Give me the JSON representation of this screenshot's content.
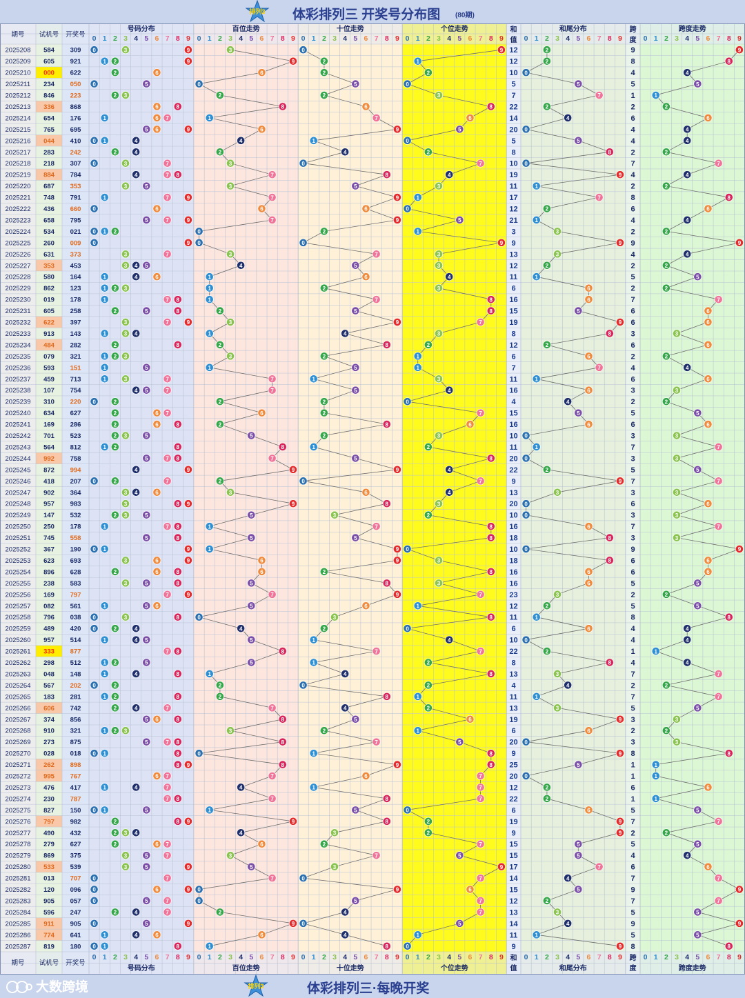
{
  "header": {
    "title": "体彩排列三 开奖号分布图",
    "periods_note": "(80期)",
    "logo_text": "排列3"
  },
  "footer": {
    "title": "体彩排列三·每晚开奖",
    "brand": "大数跨境",
    "logo_text": "排列3"
  },
  "columns": {
    "period": "期号",
    "trial": "试机号",
    "draw": "开奖号",
    "number_dist": "号码分布",
    "hundreds": "百位走势",
    "tens": "十位走势",
    "units": "个位走势",
    "sum_top": "和",
    "sum_bottom": "值",
    "sum_tail": "和尾分布",
    "span_top": "跨",
    "span_bottom": "度",
    "span_trend": "跨度走势",
    "digits": [
      "0",
      "1",
      "2",
      "3",
      "4",
      "5",
      "6",
      "7",
      "8",
      "9"
    ]
  },
  "colors": {
    "digit_colors": [
      "#2a6fb0",
      "#2e8fd2",
      "#35a74a",
      "#8cc451",
      "#1f2f6b",
      "#7b4fa8",
      "#f08a3c",
      "#f0749a",
      "#d8245b",
      "#e52b2b"
    ],
    "panel_number_dist": "#dde3f5",
    "panel_hundreds": "#fde6de",
    "panel_tens": "#fff1d8",
    "panel_units": "#fffb1c",
    "panel_sum_tail": "#e6f0dc",
    "panel_span": "#dcf7d4",
    "period_col": "#ededed",
    "trial_col": "#e8f2e0",
    "draw_col": "#dce6f7",
    "trial_highlight_strong": "#ffee00",
    "trial_highlight": "#f8c8a8",
    "trial_highlight_text": "#e06a1e"
  },
  "chart_data": {
    "type": "table",
    "title": "体彩排列三 开奖号分布图",
    "rows": [
      {
        "period": "2025208",
        "trial": "584",
        "draw": "309",
        "sum": "12",
        "span": "9",
        "hl": "",
        "tpos": "none"
      },
      {
        "period": "2025209",
        "trial": "605",
        "draw": "921",
        "sum": "12",
        "span": "8",
        "hl": "",
        "tpos": "none"
      },
      {
        "period": "2025210",
        "trial": "000",
        "draw": "622",
        "sum": "10",
        "span": "4",
        "hl": "strong",
        "tpos": "none"
      },
      {
        "period": "2025211",
        "trial": "234",
        "draw": "050",
        "sum": "5",
        "span": "5",
        "hl": "",
        "tpos": "draw"
      },
      {
        "period": "2025212",
        "trial": "846",
        "draw": "223",
        "sum": "7",
        "span": "1",
        "hl": "",
        "tpos": "draw"
      },
      {
        "period": "2025213",
        "trial": "336",
        "draw": "868",
        "sum": "22",
        "span": "2",
        "hl": "trial",
        "tpos": "none"
      },
      {
        "period": "2025214",
        "trial": "654",
        "draw": "176",
        "sum": "14",
        "span": "6",
        "hl": "",
        "tpos": "none"
      },
      {
        "period": "2025215",
        "trial": "765",
        "draw": "695",
        "sum": "20",
        "span": "4",
        "hl": "",
        "tpos": "none"
      },
      {
        "period": "2025216",
        "trial": "044",
        "draw": "410",
        "sum": "5",
        "span": "4",
        "hl": "trial",
        "tpos": "none"
      },
      {
        "period": "2025217",
        "trial": "283",
        "draw": "242",
        "sum": "8",
        "span": "2",
        "hl": "",
        "tpos": "draw"
      },
      {
        "period": "2025218",
        "trial": "218",
        "draw": "307",
        "sum": "10",
        "span": "7",
        "hl": "",
        "tpos": "none"
      },
      {
        "period": "2025219",
        "trial": "884",
        "draw": "784",
        "sum": "19",
        "span": "4",
        "hl": "trial",
        "tpos": "none"
      },
      {
        "period": "2025220",
        "trial": "687",
        "draw": "353",
        "sum": "11",
        "span": "2",
        "hl": "",
        "tpos": "draw"
      },
      {
        "period": "2025221",
        "trial": "748",
        "draw": "791",
        "sum": "17",
        "span": "8",
        "hl": "",
        "tpos": "none"
      },
      {
        "period": "2025222",
        "trial": "436",
        "draw": "660",
        "sum": "12",
        "span": "6",
        "hl": "",
        "tpos": "draw"
      },
      {
        "period": "2025223",
        "trial": "658",
        "draw": "795",
        "sum": "21",
        "span": "4",
        "hl": "",
        "tpos": "none"
      },
      {
        "period": "2025224",
        "trial": "534",
        "draw": "021",
        "sum": "3",
        "span": "2",
        "hl": "",
        "tpos": "none"
      },
      {
        "period": "2025225",
        "trial": "260",
        "draw": "009",
        "sum": "9",
        "span": "9",
        "hl": "",
        "tpos": "draw"
      },
      {
        "period": "2025226",
        "trial": "631",
        "draw": "373",
        "sum": "13",
        "span": "4",
        "hl": "",
        "tpos": "draw"
      },
      {
        "period": "2025227",
        "trial": "353",
        "draw": "453",
        "sum": "12",
        "span": "2",
        "hl": "trial",
        "tpos": "none"
      },
      {
        "period": "2025228",
        "trial": "580",
        "draw": "164",
        "sum": "11",
        "span": "5",
        "hl": "",
        "tpos": "none"
      },
      {
        "period": "2025229",
        "trial": "862",
        "draw": "123",
        "sum": "6",
        "span": "2",
        "hl": "",
        "tpos": "none"
      },
      {
        "period": "2025230",
        "trial": "019",
        "draw": "178",
        "sum": "16",
        "span": "7",
        "hl": "",
        "tpos": "none"
      },
      {
        "period": "2025231",
        "trial": "605",
        "draw": "258",
        "sum": "15",
        "span": "6",
        "hl": "",
        "tpos": "none"
      },
      {
        "period": "2025232",
        "trial": "622",
        "draw": "397",
        "sum": "19",
        "span": "6",
        "hl": "trial",
        "tpos": "none"
      },
      {
        "period": "2025233",
        "trial": "913",
        "draw": "143",
        "sum": "8",
        "span": "3",
        "hl": "",
        "tpos": "none"
      },
      {
        "period": "2025234",
        "trial": "484",
        "draw": "282",
        "sum": "12",
        "span": "6",
        "hl": "trial",
        "tpos": "none"
      },
      {
        "period": "2025235",
        "trial": "079",
        "draw": "321",
        "sum": "6",
        "span": "2",
        "hl": "",
        "tpos": "none"
      },
      {
        "period": "2025236",
        "trial": "593",
        "draw": "151",
        "sum": "7",
        "span": "4",
        "hl": "",
        "tpos": "draw"
      },
      {
        "period": "2025237",
        "trial": "459",
        "draw": "713",
        "sum": "11",
        "span": "6",
        "hl": "",
        "tpos": "none"
      },
      {
        "period": "2025238",
        "trial": "107",
        "draw": "754",
        "sum": "16",
        "span": "3",
        "hl": "",
        "tpos": "none"
      },
      {
        "period": "2025239",
        "trial": "310",
        "draw": "220",
        "sum": "4",
        "span": "2",
        "hl": "",
        "tpos": "draw"
      },
      {
        "period": "2025240",
        "trial": "634",
        "draw": "627",
        "sum": "15",
        "span": "5",
        "hl": "",
        "tpos": "none"
      },
      {
        "period": "2025241",
        "trial": "169",
        "draw": "286",
        "sum": "16",
        "span": "6",
        "hl": "",
        "tpos": "none"
      },
      {
        "period": "2025242",
        "trial": "701",
        "draw": "523",
        "sum": "10",
        "span": "3",
        "hl": "",
        "tpos": "none"
      },
      {
        "period": "2025243",
        "trial": "564",
        "draw": "812",
        "sum": "11",
        "span": "7",
        "hl": "",
        "tpos": "none"
      },
      {
        "period": "2025244",
        "trial": "992",
        "draw": "758",
        "sum": "20",
        "span": "3",
        "hl": "trial",
        "tpos": "none"
      },
      {
        "period": "2025245",
        "trial": "872",
        "draw": "994",
        "sum": "22",
        "span": "5",
        "hl": "",
        "tpos": "draw"
      },
      {
        "period": "2025246",
        "trial": "418",
        "draw": "207",
        "sum": "9",
        "span": "7",
        "hl": "",
        "tpos": "none"
      },
      {
        "period": "2025247",
        "trial": "902",
        "draw": "364",
        "sum": "13",
        "span": "3",
        "hl": "",
        "tpos": "none"
      },
      {
        "period": "2025248",
        "trial": "957",
        "draw": "983",
        "sum": "20",
        "span": "6",
        "hl": "",
        "tpos": "none"
      },
      {
        "period": "2025249",
        "trial": "147",
        "draw": "532",
        "sum": "10",
        "span": "3",
        "hl": "",
        "tpos": "none"
      },
      {
        "period": "2025250",
        "trial": "250",
        "draw": "178",
        "sum": "16",
        "span": "7",
        "hl": "",
        "tpos": "none"
      },
      {
        "period": "2025251",
        "trial": "745",
        "draw": "558",
        "sum": "18",
        "span": "3",
        "hl": "",
        "tpos": "draw"
      },
      {
        "period": "2025252",
        "trial": "367",
        "draw": "190",
        "sum": "10",
        "span": "9",
        "hl": "",
        "tpos": "none"
      },
      {
        "period": "2025253",
        "trial": "623",
        "draw": "693",
        "sum": "18",
        "span": "6",
        "hl": "",
        "tpos": "none"
      },
      {
        "period": "2025254",
        "trial": "896",
        "draw": "628",
        "sum": "16",
        "span": "6",
        "hl": "",
        "tpos": "none"
      },
      {
        "period": "2025255",
        "trial": "238",
        "draw": "583",
        "sum": "16",
        "span": "5",
        "hl": "",
        "tpos": "none"
      },
      {
        "period": "2025256",
        "trial": "169",
        "draw": "797",
        "sum": "23",
        "span": "2",
        "hl": "",
        "tpos": "draw"
      },
      {
        "period": "2025257",
        "trial": "082",
        "draw": "561",
        "sum": "12",
        "span": "5",
        "hl": "",
        "tpos": "none"
      },
      {
        "period": "2025258",
        "trial": "796",
        "draw": "038",
        "sum": "11",
        "span": "8",
        "hl": "",
        "tpos": "none"
      },
      {
        "period": "2025259",
        "trial": "489",
        "draw": "420",
        "sum": "6",
        "span": "4",
        "hl": "",
        "tpos": "none"
      },
      {
        "period": "2025260",
        "trial": "957",
        "draw": "514",
        "sum": "10",
        "span": "4",
        "hl": "",
        "tpos": "none"
      },
      {
        "period": "2025261",
        "trial": "333",
        "draw": "877",
        "sum": "22",
        "span": "1",
        "hl": "strong",
        "tpos": "draw"
      },
      {
        "period": "2025262",
        "trial": "298",
        "draw": "512",
        "sum": "8",
        "span": "4",
        "hl": "",
        "tpos": "none"
      },
      {
        "period": "2025263",
        "trial": "048",
        "draw": "148",
        "sum": "13",
        "span": "7",
        "hl": "",
        "tpos": "none"
      },
      {
        "period": "2025264",
        "trial": "567",
        "draw": "202",
        "sum": "4",
        "span": "2",
        "hl": "",
        "tpos": "draw"
      },
      {
        "period": "2025265",
        "trial": "183",
        "draw": "281",
        "sum": "11",
        "span": "7",
        "hl": "",
        "tpos": "none"
      },
      {
        "period": "2025266",
        "trial": "606",
        "draw": "742",
        "sum": "13",
        "span": "5",
        "hl": "trial",
        "tpos": "none"
      },
      {
        "period": "2025267",
        "trial": "374",
        "draw": "856",
        "sum": "19",
        "span": "3",
        "hl": "",
        "tpos": "none"
      },
      {
        "period": "2025268",
        "trial": "910",
        "draw": "321",
        "sum": "6",
        "span": "2",
        "hl": "",
        "tpos": "none"
      },
      {
        "period": "2025269",
        "trial": "273",
        "draw": "875",
        "sum": "20",
        "span": "3",
        "hl": "",
        "tpos": "none"
      },
      {
        "period": "2025270",
        "trial": "028",
        "draw": "018",
        "sum": "9",
        "span": "8",
        "hl": "",
        "tpos": "none"
      },
      {
        "period": "2025271",
        "trial": "262",
        "draw": "898",
        "sum": "25",
        "span": "1",
        "hl": "trial",
        "tpos": "draw"
      },
      {
        "period": "2025272",
        "trial": "995",
        "draw": "767",
        "sum": "20",
        "span": "1",
        "hl": "trial",
        "tpos": "draw"
      },
      {
        "period": "2025273",
        "trial": "476",
        "draw": "417",
        "sum": "12",
        "span": "6",
        "hl": "",
        "tpos": "none"
      },
      {
        "period": "2025274",
        "trial": "230",
        "draw": "787",
        "sum": "22",
        "span": "1",
        "hl": "",
        "tpos": "draw"
      },
      {
        "period": "2025275",
        "trial": "827",
        "draw": "150",
        "sum": "6",
        "span": "5",
        "hl": "",
        "tpos": "none"
      },
      {
        "period": "2025276",
        "trial": "797",
        "draw": "982",
        "sum": "19",
        "span": "7",
        "hl": "trial",
        "tpos": "none"
      },
      {
        "period": "2025277",
        "trial": "490",
        "draw": "432",
        "sum": "9",
        "span": "2",
        "hl": "",
        "tpos": "none"
      },
      {
        "period": "2025278",
        "trial": "279",
        "draw": "627",
        "sum": "15",
        "span": "5",
        "hl": "",
        "tpos": "none"
      },
      {
        "period": "2025279",
        "trial": "869",
        "draw": "375",
        "sum": "15",
        "span": "4",
        "hl": "",
        "tpos": "none"
      },
      {
        "period": "2025280",
        "trial": "533",
        "draw": "539",
        "sum": "17",
        "span": "6",
        "hl": "trial",
        "tpos": "none"
      },
      {
        "period": "2025281",
        "trial": "013",
        "draw": "707",
        "sum": "14",
        "span": "7",
        "hl": "",
        "tpos": "draw"
      },
      {
        "period": "2025282",
        "trial": "120",
        "draw": "096",
        "sum": "15",
        "span": "9",
        "hl": "",
        "tpos": "none"
      },
      {
        "period": "2025283",
        "trial": "905",
        "draw": "057",
        "sum": "12",
        "span": "7",
        "hl": "",
        "tpos": "none"
      },
      {
        "period": "2025284",
        "trial": "596",
        "draw": "247",
        "sum": "13",
        "span": "5",
        "hl": "",
        "tpos": "none"
      },
      {
        "period": "2025285",
        "trial": "911",
        "draw": "905",
        "sum": "14",
        "span": "9",
        "hl": "trial",
        "tpos": "none"
      },
      {
        "period": "2025286",
        "trial": "774",
        "draw": "641",
        "sum": "11",
        "span": "5",
        "hl": "trial",
        "tpos": "none"
      },
      {
        "period": "2025287",
        "trial": "819",
        "draw": "180",
        "sum": "9",
        "span": "8",
        "hl": "",
        "tpos": "none"
      }
    ]
  }
}
